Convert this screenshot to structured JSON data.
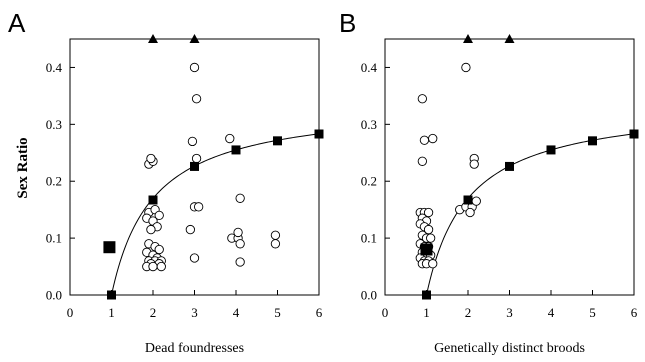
{
  "chart_data": [
    {
      "type": "scatter",
      "panel": "A",
      "title": "",
      "xlabel": "Dead foundresses",
      "ylabel": "Sex Ratio",
      "xlim": [
        0,
        6
      ],
      "ylim": [
        0,
        0.45
      ],
      "xticks": [
        "0",
        "1",
        "2",
        "3",
        "4",
        "5",
        "6"
      ],
      "yticks": [
        "0.0",
        "0.1",
        "0.2",
        "0.3",
        "0.4"
      ],
      "grid": false,
      "legend": "none",
      "series": [
        {
          "kind": "observed-open-circles",
          "points": [
            [
              1.9,
              0.23
            ],
            [
              2.0,
              0.235
            ],
            [
              1.95,
              0.24
            ],
            [
              1.9,
              0.145
            ],
            [
              2.05,
              0.15
            ],
            [
              2.15,
              0.14
            ],
            [
              1.85,
              0.135
            ],
            [
              2.0,
              0.13
            ],
            [
              2.1,
              0.12
            ],
            [
              1.95,
              0.115
            ],
            [
              1.9,
              0.09
            ],
            [
              2.05,
              0.085
            ],
            [
              2.15,
              0.08
            ],
            [
              1.85,
              0.075
            ],
            [
              2.0,
              0.07
            ],
            [
              2.1,
              0.065
            ],
            [
              1.9,
              0.06
            ],
            [
              2.05,
              0.06
            ],
            [
              2.2,
              0.06
            ],
            [
              1.95,
              0.055
            ],
            [
              2.15,
              0.055
            ],
            [
              1.85,
              0.05
            ],
            [
              2.0,
              0.05
            ],
            [
              2.2,
              0.05
            ],
            [
              3.0,
              0.4
            ],
            [
              3.05,
              0.345
            ],
            [
              2.95,
              0.27
            ],
            [
              3.05,
              0.24
            ],
            [
              3.0,
              0.155
            ],
            [
              3.1,
              0.155
            ],
            [
              2.9,
              0.115
            ],
            [
              3.0,
              0.065
            ],
            [
              3.85,
              0.275
            ],
            [
              3.9,
              0.1
            ],
            [
              4.05,
              0.1
            ],
            [
              4.1,
              0.17
            ],
            [
              4.05,
              0.11
            ],
            [
              4.1,
              0.09
            ],
            [
              4.1,
              0.058
            ],
            [
              4.95,
              0.105
            ],
            [
              4.95,
              0.09
            ]
          ]
        },
        {
          "kind": "expected-squares",
          "points": [
            [
              1,
              0.0
            ],
            [
              2,
              0.167
            ],
            [
              3,
              0.226
            ],
            [
              4,
              0.255
            ],
            [
              5,
              0.271
            ],
            [
              6,
              0.283
            ]
          ]
        },
        {
          "kind": "large-square",
          "points": [
            [
              0.95,
              0.084
            ]
          ]
        },
        {
          "kind": "top-triangles",
          "points": [
            [
              2,
              0.45
            ],
            [
              3,
              0.45
            ]
          ]
        }
      ],
      "curve": {
        "type": "fitted-line",
        "x": [
          1,
          6
        ],
        "formula": "sex_ratio = 0.34*(x-1)/x"
      }
    },
    {
      "type": "scatter",
      "panel": "B",
      "title": "",
      "xlabel": "Genetically distinct broods",
      "ylabel": "",
      "xlim": [
        0,
        6
      ],
      "ylim": [
        0,
        0.45
      ],
      "xticks": [
        "0",
        "1",
        "2",
        "3",
        "4",
        "5",
        "6"
      ],
      "yticks": [
        "0.0",
        "0.1",
        "0.2",
        "0.3",
        "0.4"
      ],
      "grid": false,
      "legend": "none",
      "series": [
        {
          "kind": "observed-open-circles",
          "points": [
            [
              0.9,
              0.345
            ],
            [
              0.95,
              0.272
            ],
            [
              1.15,
              0.275
            ],
            [
              0.9,
              0.235
            ],
            [
              0.85,
              0.145
            ],
            [
              0.95,
              0.145
            ],
            [
              1.05,
              0.145
            ],
            [
              0.9,
              0.135
            ],
            [
              1.0,
              0.13
            ],
            [
              0.85,
              0.125
            ],
            [
              0.95,
              0.12
            ],
            [
              1.05,
              0.115
            ],
            [
              0.9,
              0.105
            ],
            [
              1.0,
              0.1
            ],
            [
              1.1,
              0.1
            ],
            [
              0.85,
              0.09
            ],
            [
              0.95,
              0.085
            ],
            [
              1.05,
              0.085
            ],
            [
              0.9,
              0.075
            ],
            [
              1.0,
              0.07
            ],
            [
              1.1,
              0.07
            ],
            [
              0.85,
              0.065
            ],
            [
              0.95,
              0.06
            ],
            [
              1.05,
              0.06
            ],
            [
              0.9,
              0.055
            ],
            [
              1.0,
              0.055
            ],
            [
              1.15,
              0.055
            ],
            [
              1.95,
              0.4
            ],
            [
              2.15,
              0.24
            ],
            [
              2.15,
              0.23
            ],
            [
              1.8,
              0.15
            ],
            [
              1.95,
              0.155
            ],
            [
              2.1,
              0.155
            ],
            [
              2.2,
              0.165
            ],
            [
              2.05,
              0.145
            ]
          ]
        },
        {
          "kind": "expected-squares",
          "points": [
            [
              1,
              0.0
            ],
            [
              2,
              0.167
            ],
            [
              3,
              0.226
            ],
            [
              4,
              0.255
            ],
            [
              5,
              0.271
            ],
            [
              6,
              0.283
            ]
          ]
        },
        {
          "kind": "large-square",
          "points": [
            [
              1.0,
              0.08
            ]
          ]
        },
        {
          "kind": "top-triangles",
          "points": [
            [
              2,
              0.45
            ],
            [
              3,
              0.45
            ]
          ]
        }
      ],
      "curve": {
        "type": "fitted-line",
        "x": [
          1,
          6
        ],
        "formula": "sex_ratio = 0.34*(x-1)/x"
      }
    }
  ]
}
